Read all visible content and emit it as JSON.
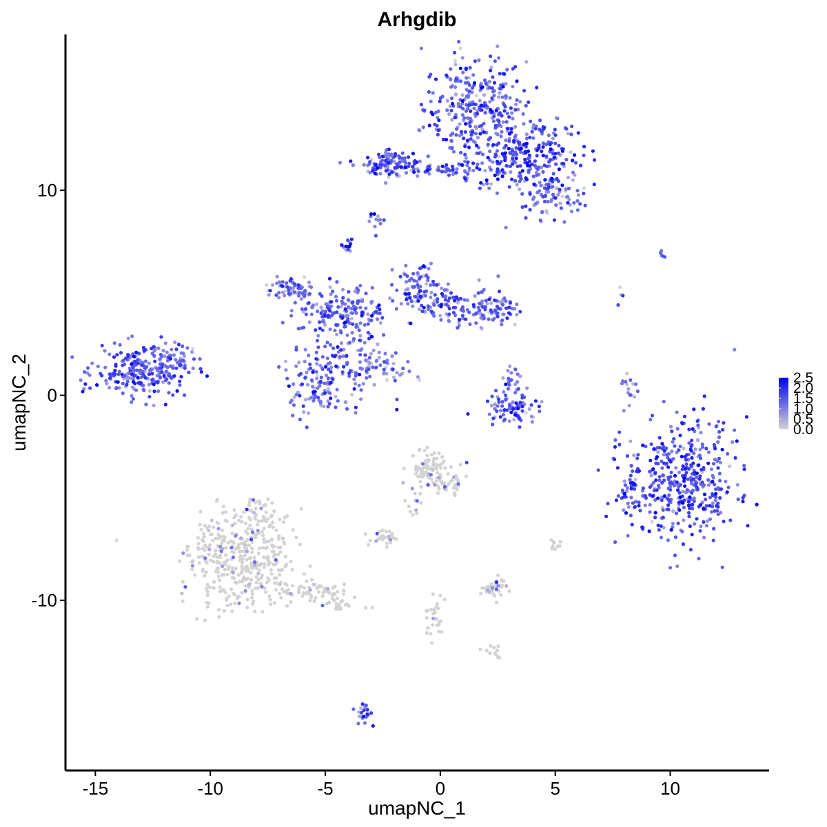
{
  "chart_data": {
    "type": "scatter",
    "title": "Arhgdib",
    "xlabel": "umapNC_1",
    "ylabel": "umapNC_2",
    "xlim": [
      -16.3,
      14.3
    ],
    "ylim": [
      -18.3,
      17.6
    ],
    "xticks": [
      -15,
      -10,
      -5,
      0,
      5,
      10
    ],
    "xtick_labels": [
      "-15",
      "-10",
      "-5",
      "0",
      "5",
      "10"
    ],
    "yticks": [
      -10,
      0,
      10
    ],
    "ytick_labels": [
      "-10",
      "0",
      "10"
    ],
    "grid": false,
    "legend": {
      "placement": "right",
      "labels": [
        "2.5",
        "2.0",
        "1.5",
        "1.0",
        "0.5",
        "0.0"
      ],
      "values": [
        2.5,
        2.0,
        1.5,
        1.0,
        0.5,
        0.0
      ],
      "color_low": "#d3d3d3",
      "color_high": "#0000ff"
    },
    "clusters": [
      {
        "cx": 1.5,
        "cy": 14.0,
        "sx": 1.1,
        "sy": 1.3,
        "n": 300,
        "expr": 1.3
      },
      {
        "cx": 3.6,
        "cy": 11.8,
        "sx": 1.3,
        "sy": 0.9,
        "n": 260,
        "expr": 1.5
      },
      {
        "cx": 4.8,
        "cy": 9.8,
        "sx": 0.7,
        "sy": 0.6,
        "n": 80,
        "expr": 1.1
      },
      {
        "cx": -2.1,
        "cy": 11.3,
        "sx": 0.6,
        "sy": 0.3,
        "n": 110,
        "expr": 1.3
      },
      {
        "cx": -0.2,
        "cy": 11.0,
        "sx": 1.2,
        "sy": 0.15,
        "n": 60,
        "expr": 1.2
      },
      {
        "cx": -2.8,
        "cy": 8.5,
        "sx": 0.2,
        "sy": 0.3,
        "n": 12,
        "expr": 1.1
      },
      {
        "cx": -13.0,
        "cy": 1.1,
        "sx": 1.0,
        "sy": 0.6,
        "n": 230,
        "expr": 1.3
      },
      {
        "cx": -11.5,
        "cy": 1.8,
        "sx": 0.5,
        "sy": 0.35,
        "n": 40,
        "expr": 1.0
      },
      {
        "cx": -6.5,
        "cy": 5.2,
        "sx": 0.6,
        "sy": 0.3,
        "n": 60,
        "expr": 1.0
      },
      {
        "cx": -4.3,
        "cy": 4.2,
        "sx": 1.0,
        "sy": 0.6,
        "n": 140,
        "expr": 1.3
      },
      {
        "cx": -4.0,
        "cy": 7.3,
        "sx": 0.12,
        "sy": 0.2,
        "n": 14,
        "expr": 1.5
      },
      {
        "cx": -1.0,
        "cy": 5.2,
        "sx": 0.45,
        "sy": 0.6,
        "n": 80,
        "expr": 1.3
      },
      {
        "cx": 0.6,
        "cy": 4.3,
        "sx": 0.9,
        "sy": 0.4,
        "n": 90,
        "expr": 1.2
      },
      {
        "cx": 2.3,
        "cy": 4.2,
        "sx": 0.6,
        "sy": 0.45,
        "n": 70,
        "expr": 1.1
      },
      {
        "cx": -3.8,
        "cy": 2.0,
        "sx": 0.8,
        "sy": 1.3,
        "n": 150,
        "expr": 1.3
      },
      {
        "cx": -5.6,
        "cy": 0.5,
        "sx": 0.6,
        "sy": 0.7,
        "n": 90,
        "expr": 1.1
      },
      {
        "cx": -2.3,
        "cy": 1.3,
        "sx": 0.6,
        "sy": 0.4,
        "n": 30,
        "expr": 0.5
      },
      {
        "cx": 3.2,
        "cy": -0.6,
        "sx": 0.7,
        "sy": 0.35,
        "n": 80,
        "expr": 1.4
      },
      {
        "cx": 3.1,
        "cy": 0.7,
        "sx": 0.25,
        "sy": 0.4,
        "n": 20,
        "expr": 1.0
      },
      {
        "cx": 8.2,
        "cy": 0.2,
        "sx": 0.15,
        "sy": 0.6,
        "n": 15,
        "expr": 0.9
      },
      {
        "cx": 10.5,
        "cy": -4.2,
        "sx": 1.2,
        "sy": 1.5,
        "n": 420,
        "expr": 1.5
      },
      {
        "cx": 8.2,
        "cy": -4.5,
        "sx": 0.25,
        "sy": 0.6,
        "n": 30,
        "expr": 1.4
      },
      {
        "cx": -8.8,
        "cy": -8.0,
        "sx": 1.1,
        "sy": 1.2,
        "n": 380,
        "expr": 0.05
      },
      {
        "cx": -7.9,
        "cy": -5.8,
        "sx": 0.4,
        "sy": 0.4,
        "n": 40,
        "expr": 0.05
      },
      {
        "cx": -5.5,
        "cy": -9.6,
        "sx": 0.9,
        "sy": 0.35,
        "n": 70,
        "expr": 0.35
      },
      {
        "cx": -4.2,
        "cy": -10.2,
        "sx": 0.35,
        "sy": 0.2,
        "n": 14,
        "expr": 0.1
      },
      {
        "cx": -0.5,
        "cy": -3.6,
        "sx": 0.4,
        "sy": 0.5,
        "n": 90,
        "expr": 0.12
      },
      {
        "cx": 0.6,
        "cy": -4.2,
        "sx": 0.35,
        "sy": 0.35,
        "n": 30,
        "expr": 0.2
      },
      {
        "cx": -1.1,
        "cy": -5.2,
        "sx": 0.2,
        "sy": 0.4,
        "n": 12,
        "expr": 0.05
      },
      {
        "cx": -2.5,
        "cy": -6.9,
        "sx": 0.3,
        "sy": 0.2,
        "n": 30,
        "expr": 0.1
      },
      {
        "cx": 2.4,
        "cy": -9.4,
        "sx": 0.35,
        "sy": 0.25,
        "n": 40,
        "expr": 0.1
      },
      {
        "cx": -0.2,
        "cy": -10.8,
        "sx": 0.2,
        "sy": 0.6,
        "n": 28,
        "expr": 0.05
      },
      {
        "cx": 2.3,
        "cy": -12.5,
        "sx": 0.3,
        "sy": 0.15,
        "n": 12,
        "expr": 0.1
      },
      {
        "cx": -3.4,
        "cy": -15.4,
        "sx": 0.2,
        "sy": 0.35,
        "n": 22,
        "expr": 1.1
      },
      {
        "cx": 5.0,
        "cy": -7.3,
        "sx": 0.15,
        "sy": 0.12,
        "n": 8,
        "expr": 0.1
      },
      {
        "cx": 7.8,
        "cy": 4.8,
        "sx": 0.1,
        "sy": 0.2,
        "n": 4,
        "expr": 0.6
      },
      {
        "cx": 9.8,
        "cy": 6.9,
        "sx": 0.15,
        "sy": 0.1,
        "n": 5,
        "expr": 1.0
      }
    ]
  }
}
